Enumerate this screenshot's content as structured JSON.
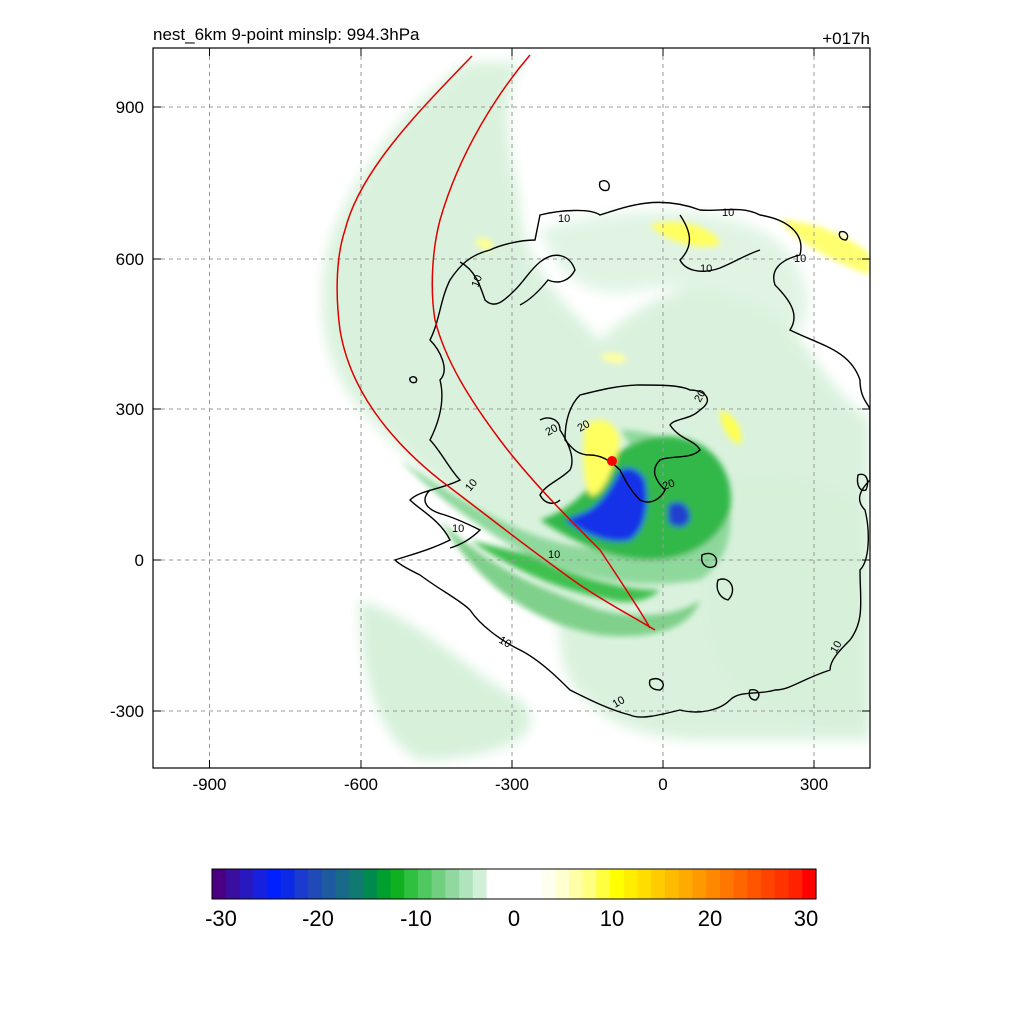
{
  "title_left": "nest_6km  9-point minslp: 994.3hPa",
  "title_right": "+017h",
  "colors": {
    "contour": "#000000",
    "track": "#e00000",
    "center": "#ff0000"
  },
  "chart_data": {
    "type": "heatmap",
    "title": "nest_6km  9-point minslp: 994.3hPa",
    "xlim": [
      -1000,
      400
    ],
    "ylim": [
      -400,
      1000
    ],
    "x_ticks": [
      -900,
      -600,
      -300,
      0,
      300
    ],
    "y_ticks": [
      -300,
      0,
      300,
      600,
      900
    ],
    "grid": true,
    "colorbar": {
      "placement": "bottom",
      "range": [
        -30,
        30
      ],
      "ticks": [
        -30,
        -20,
        -10,
        0,
        10,
        20,
        30
      ],
      "colors": [
        "#4b0082",
        "#3a0fa0",
        "#2818c0",
        "#1820e0",
        "#0020ff",
        "#0a2ae8",
        "#1a3ad0",
        "#204ab8",
        "#1e5aa0",
        "#186a88",
        "#107a70",
        "#008a50",
        "#00a030",
        "#10b020",
        "#30c040",
        "#50c860",
        "#70d080",
        "#90d8a0",
        "#b0e4bc",
        "#d0f0d8",
        "#ffffff",
        "#ffffff",
        "#ffffff",
        "#ffffff",
        "#fffff0",
        "#ffffd0",
        "#ffffa8",
        "#ffff80",
        "#ffff40",
        "#ffff00",
        "#ffee00",
        "#ffdd00",
        "#ffcc00",
        "#ffbb00",
        "#ffaa00",
        "#ff9900",
        "#ff8800",
        "#ff7700",
        "#ff6600",
        "#ff5500",
        "#ff4400",
        "#ff3300",
        "#ff2200",
        "#ff0000"
      ]
    },
    "contour_labels": [
      "10",
      "10",
      "10",
      "10",
      "10",
      "10",
      "10",
      "10",
      "10",
      "10",
      "20",
      "20",
      "20",
      "20"
    ],
    "storm_center": {
      "x": -100,
      "y": 195
    }
  }
}
